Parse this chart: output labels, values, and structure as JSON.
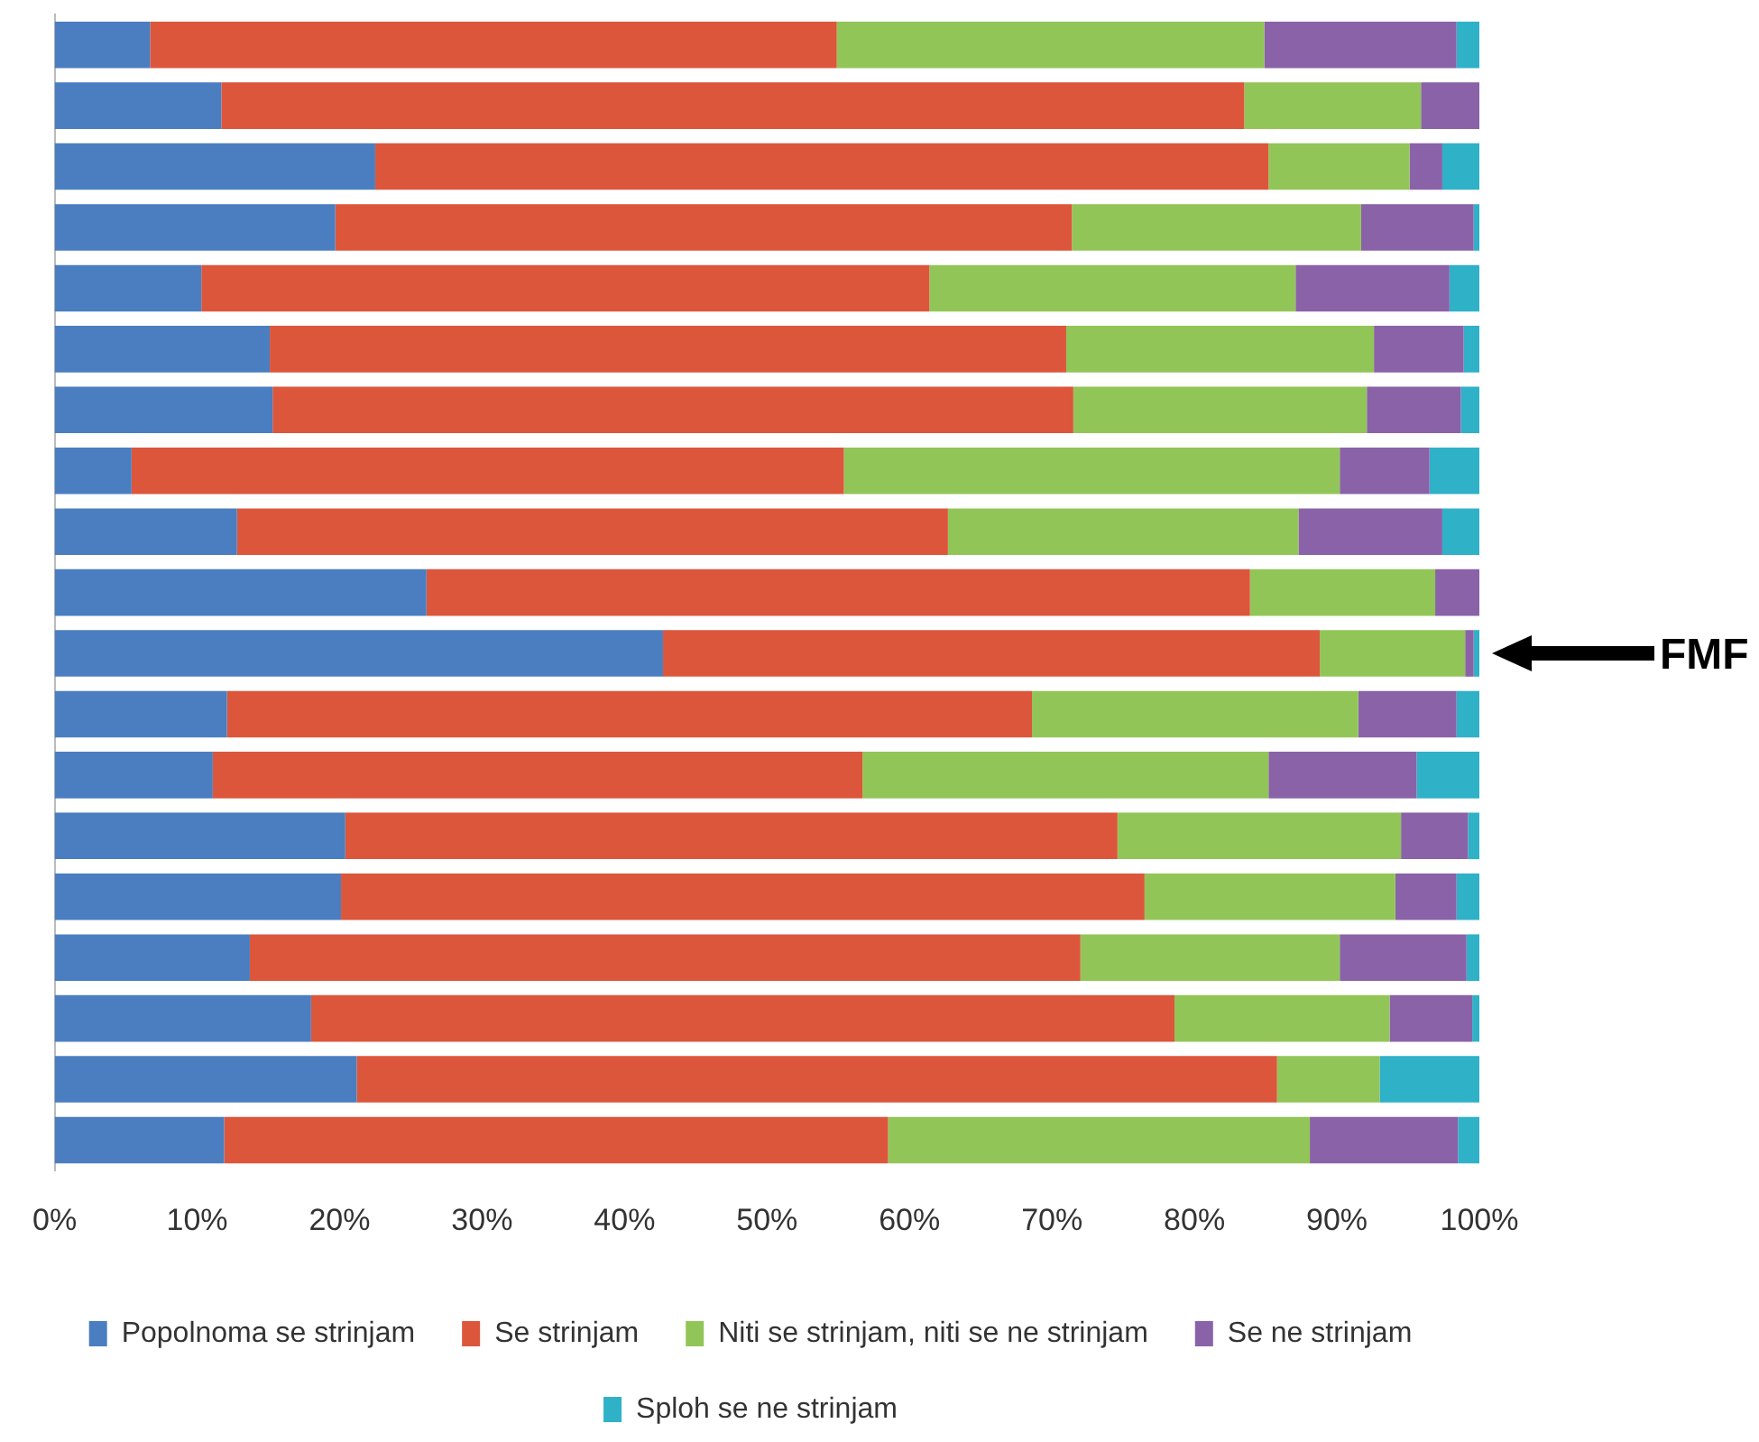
{
  "chart_data": {
    "type": "bar",
    "orientation": "horizontal",
    "stacked": true,
    "categories": [
      null,
      null,
      null,
      null,
      null,
      null,
      null,
      null,
      null,
      null,
      null,
      null,
      null,
      null,
      null,
      null,
      null,
      null,
      null
    ],
    "series": [
      {
        "name": "Popolnoma se strinjam",
        "color": "#4a7ec0",
        "values": [
          6.7,
          11.7,
          22.5,
          19.7,
          10.3,
          15.1,
          15.3,
          5.4,
          12.8,
          26.1,
          42.7,
          12.1,
          11.1,
          20.4,
          20.1,
          13.7,
          18.0,
          21.2,
          11.9
        ]
      },
      {
        "name": "Se strinjam",
        "color": "#dc563c",
        "values": [
          48.2,
          71.8,
          62.7,
          51.7,
          51.1,
          55.9,
          56.2,
          50.0,
          49.9,
          57.8,
          46.1,
          56.5,
          45.6,
          54.2,
          56.4,
          58.3,
          60.6,
          64.6,
          46.6
        ]
      },
      {
        "name": "Niti se strinjam, niti se ne strinjam",
        "color": "#92c557",
        "values": [
          30.0,
          12.4,
          9.9,
          20.3,
          25.7,
          21.6,
          20.6,
          34.8,
          24.6,
          13.0,
          10.2,
          22.9,
          28.5,
          19.9,
          17.6,
          18.2,
          15.1,
          7.2,
          29.6
        ]
      },
      {
        "name": "Se ne strinjam",
        "color": "#8a62a8",
        "values": [
          13.5,
          4.1,
          2.3,
          7.9,
          10.8,
          6.3,
          6.6,
          6.3,
          10.1,
          3.1,
          0.6,
          6.9,
          10.4,
          4.7,
          4.3,
          8.9,
          5.8,
          0,
          10.4
        ]
      },
      {
        "name": "Sploh se ne strinjam",
        "color": "#2fb1c8",
        "values": [
          1.6,
          0,
          2.6,
          0.4,
          2.1,
          1.1,
          1.3,
          3.5,
          2.6,
          0,
          0.4,
          1.6,
          4.4,
          0.8,
          1.6,
          0.9,
          0.5,
          7.0,
          1.5
        ]
      }
    ],
    "xlim": [
      0,
      100
    ],
    "xticks": [
      {
        "value": 0,
        "label": "0%"
      },
      {
        "value": 10,
        "label": "10%"
      },
      {
        "value": 20,
        "label": "20%"
      },
      {
        "value": 30,
        "label": "30%"
      },
      {
        "value": 40,
        "label": "40%"
      },
      {
        "value": 50,
        "label": "50%"
      },
      {
        "value": 60,
        "label": "60%"
      },
      {
        "value": 70,
        "label": "70%"
      },
      {
        "value": 80,
        "label": "80%"
      },
      {
        "value": 90,
        "label": "90%"
      },
      {
        "value": 100,
        "label": "100%"
      }
    ],
    "grid": false,
    "legend": "bottom",
    "annotations": [
      "FMF"
    ]
  }
}
